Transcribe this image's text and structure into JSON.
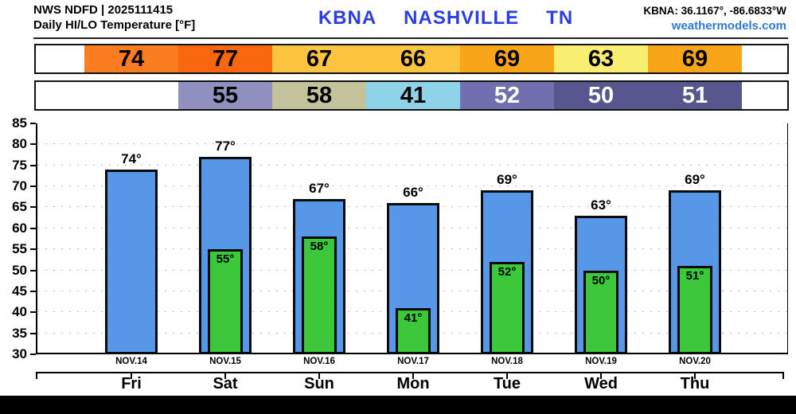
{
  "header": {
    "model_line": "NWS NDFD | 2025111415",
    "product_line": "Daily HI/LO Temperature [°F]",
    "station": {
      "code": "KBNA",
      "name": "NASHVILLE",
      "state": "TN"
    },
    "coords": "KBNA: 36.1167°, -86.6833°W",
    "site": "weathermodels.com",
    "station_color": "#2b3ee0",
    "site_color": "#2f7ad0"
  },
  "strips": {
    "hi": {
      "name": "daily-high-strip",
      "start_col": 0,
      "segments": [
        {
          "value": "74",
          "bg": "#fb7d1f",
          "fg": "#000000"
        },
        {
          "value": "77",
          "bg": "#f8670d",
          "fg": "#000000"
        },
        {
          "value": "67",
          "bg": "#fdc43f",
          "fg": "#000000"
        },
        {
          "value": "66",
          "bg": "#fdc43f",
          "fg": "#000000"
        },
        {
          "value": "69",
          "bg": "#f8a519",
          "fg": "#000000"
        },
        {
          "value": "63",
          "bg": "#f9ee70",
          "fg": "#000000"
        },
        {
          "value": "69",
          "bg": "#f8a519",
          "fg": "#000000"
        }
      ]
    },
    "lo": {
      "name": "daily-low-strip",
      "start_col": 1,
      "segments": [
        {
          "value": "55",
          "bg": "#9090bf",
          "fg": "#000000"
        },
        {
          "value": "58",
          "bg": "#c3c39b",
          "fg": "#000000"
        },
        {
          "value": "41",
          "bg": "#8ed3e8",
          "fg": "#000000"
        },
        {
          "value": "52",
          "bg": "#7070b0",
          "fg": "#ffffff"
        },
        {
          "value": "50",
          "bg": "#575790",
          "fg": "#ffffff"
        },
        {
          "value": "51",
          "bg": "#575790",
          "fg": "#ffffff"
        }
      ]
    }
  },
  "chart_data": {
    "type": "bar",
    "title": "NWS NDFD Daily HI/LO Temperature [°F] — KBNA Nashville TN",
    "categories": [
      "NOV.14",
      "NOV.15",
      "NOV.16",
      "NOV.17",
      "NOV.18",
      "NOV.19",
      "NOV.20"
    ],
    "day_names": [
      "Fri",
      "Sat",
      "Sun",
      "Mon",
      "Tue",
      "Wed",
      "Thu"
    ],
    "series": [
      {
        "name": "Daily High",
        "color": "#5697e8",
        "values": [
          74,
          77,
          67,
          66,
          69,
          63,
          69
        ]
      },
      {
        "name": "Daily Low",
        "color": "#3bc93b",
        "values": [
          null,
          55,
          58,
          41,
          52,
          50,
          51
        ]
      }
    ],
    "unit": "°",
    "ylim": [
      30,
      85
    ],
    "ytick_step": 5,
    "grid": "dotted-horizontal",
    "legend": "none"
  }
}
